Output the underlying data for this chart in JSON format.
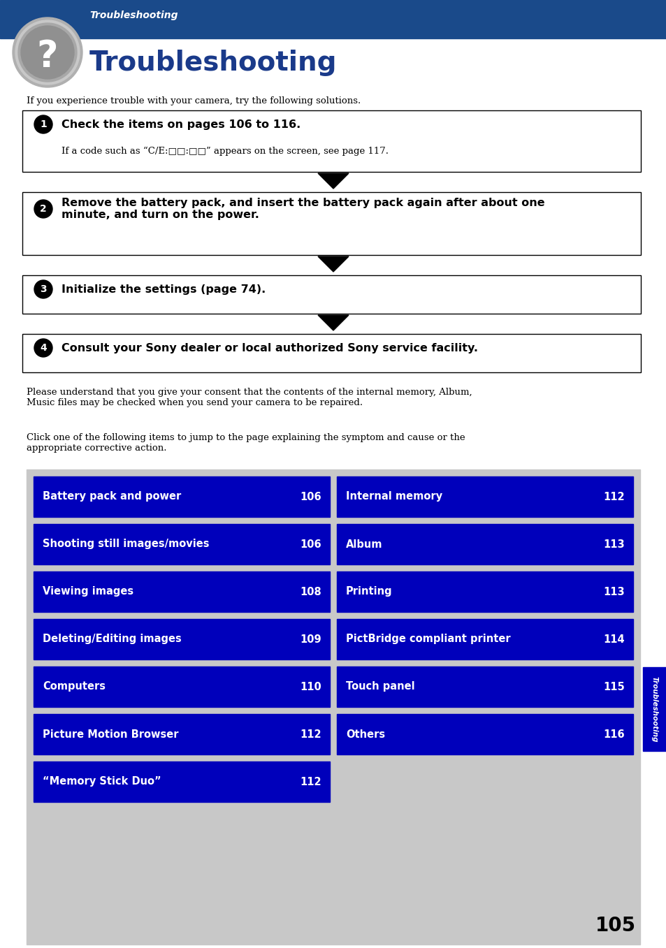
{
  "page_bg": "#ffffff",
  "header_bg": "#1a4a8a",
  "header_italic": "Troubleshooting",
  "header_bold": "Troubleshooting",
  "header_italic_color": "#ffffff",
  "header_bold_color": "#1a3a8a",
  "intro_text": "If you experience trouble with your camera, try the following solutions.",
  "steps": [
    {
      "num": "1",
      "bold_text": "Check the items on pages 106 to 116.",
      "sub_text": "If a code such as “C/E:□□:□□” appears on the screen, see page 117."
    },
    {
      "num": "2",
      "bold_text": "Remove the battery pack, and insert the battery pack again after about one\nminute, and turn on the power.",
      "sub_text": ""
    },
    {
      "num": "3",
      "bold_text": "Initialize the settings (page 74).",
      "sub_text": ""
    },
    {
      "num": "4",
      "bold_text": "Consult your Sony dealer or local authorized Sony service facility.",
      "sub_text": ""
    }
  ],
  "consent_text": "Please understand that you give your consent that the contents of the internal memory, Album,\nMusic files may be checked when you send your camera to be repaired.",
  "click_text": "Click one of the following items to jump to the page explaining the symptom and cause or the\nappropriate corrective action.",
  "table_bg": "#c8c8c8",
  "cell_bg": "#0000bb",
  "cell_text_color": "#ffffff",
  "left_cells": [
    {
      "label": "Battery pack and power",
      "page": "106"
    },
    {
      "label": "Shooting still images/movies",
      "page": "106"
    },
    {
      "label": "Viewing images",
      "page": "108"
    },
    {
      "label": "Deleting/Editing images",
      "page": "109"
    },
    {
      "label": "Computers",
      "page": "110"
    },
    {
      "label": "Picture Motion Browser",
      "page": "112"
    },
    {
      "label": "“Memory Stick Duo”",
      "page": "112"
    }
  ],
  "right_cells": [
    {
      "label": "Internal memory",
      "page": "112"
    },
    {
      "label": "Album",
      "page": "113"
    },
    {
      "label": "Printing",
      "page": "113"
    },
    {
      "label": "PictBridge compliant printer",
      "page": "114"
    },
    {
      "label": "Touch panel",
      "page": "115"
    },
    {
      "label": "Others",
      "page": "116"
    }
  ],
  "side_tab_color": "#0000bb",
  "side_tab_text": "Troubleshooting",
  "page_number": "105"
}
